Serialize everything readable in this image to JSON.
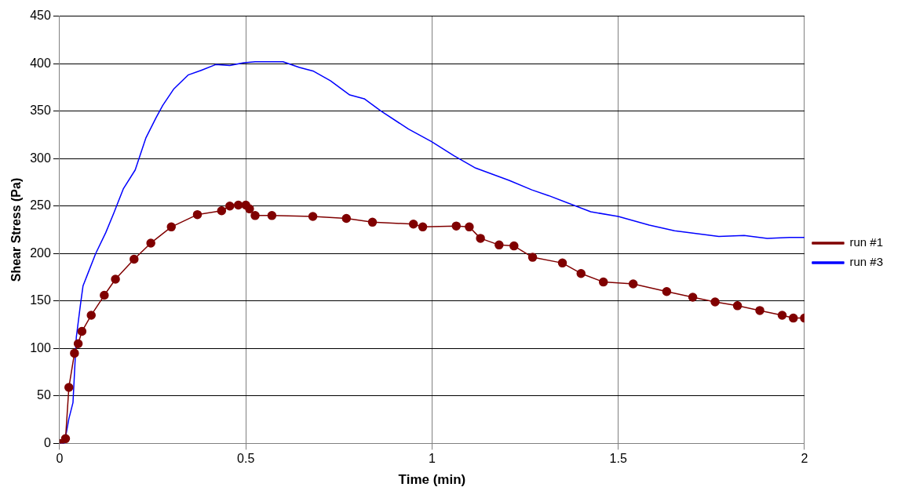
{
  "chart_data": {
    "type": "line",
    "xlabel": "Time (min)",
    "ylabel": "Shear Stress (Pa)",
    "xlim": [
      0,
      2
    ],
    "xticks": [
      0,
      0.5,
      1,
      1.5,
      2
    ],
    "ylim": [
      0,
      450
    ],
    "yticks": [
      0,
      50,
      100,
      150,
      200,
      250,
      300,
      350,
      400,
      450
    ],
    "grid": true,
    "legend": "right",
    "series": [
      {
        "name": "run #1",
        "color": "#800000",
        "marker": "circle",
        "x": [
          0,
          0.016,
          0.025,
          0.04,
          0.05,
          0.06,
          0.085,
          0.12,
          0.15,
          0.2,
          0.245,
          0.3,
          0.37,
          0.435,
          0.457,
          0.48,
          0.5,
          0.51,
          0.525,
          0.57,
          0.68,
          0.77,
          0.84,
          0.95,
          0.975,
          1.065,
          1.1,
          1.13,
          1.18,
          1.22,
          1.27,
          1.35,
          1.4,
          1.46,
          1.54,
          1.63,
          1.7,
          1.76,
          1.82,
          1.88,
          1.94,
          1.97,
          2
        ],
        "values": [
          0,
          5,
          59,
          95,
          105,
          118,
          135,
          156,
          173,
          194,
          211,
          228,
          241,
          245,
          250,
          251,
          251,
          247,
          240,
          240,
          239,
          237,
          233,
          231,
          228,
          229,
          228,
          216,
          209,
          208,
          196,
          190,
          179,
          170,
          168,
          160,
          154,
          149,
          145,
          140,
          135,
          132,
          132
        ]
      },
      {
        "name": "run #3",
        "color": "#0000ff",
        "marker": "none",
        "x": [
          0,
          0.013,
          0.025,
          0.036,
          0.045,
          0.056,
          0.063,
          0.074,
          0.097,
          0.124,
          0.146,
          0.171,
          0.203,
          0.232,
          0.259,
          0.277,
          0.306,
          0.345,
          0.374,
          0.419,
          0.457,
          0.495,
          0.525,
          0.6,
          0.644,
          0.682,
          0.727,
          0.779,
          0.818,
          0.863,
          0.937,
          0.998,
          1.059,
          1.117,
          1.207,
          1.268,
          1.313,
          1.426,
          1.5,
          1.583,
          1.651,
          1.77,
          1.838,
          1.9,
          1.96,
          2
        ],
        "values": [
          0,
          0,
          26,
          43,
          112,
          146,
          166,
          177,
          200,
          222,
          243,
          268,
          288,
          322,
          343,
          356,
          373,
          388,
          392,
          399,
          398,
          401,
          402,
          402,
          396,
          392,
          382,
          367,
          363,
          350,
          331,
          318,
          303,
          290,
          277,
          267,
          261,
          244,
          239,
          230,
          224,
          218,
          219,
          216,
          217,
          217
        ]
      }
    ]
  }
}
